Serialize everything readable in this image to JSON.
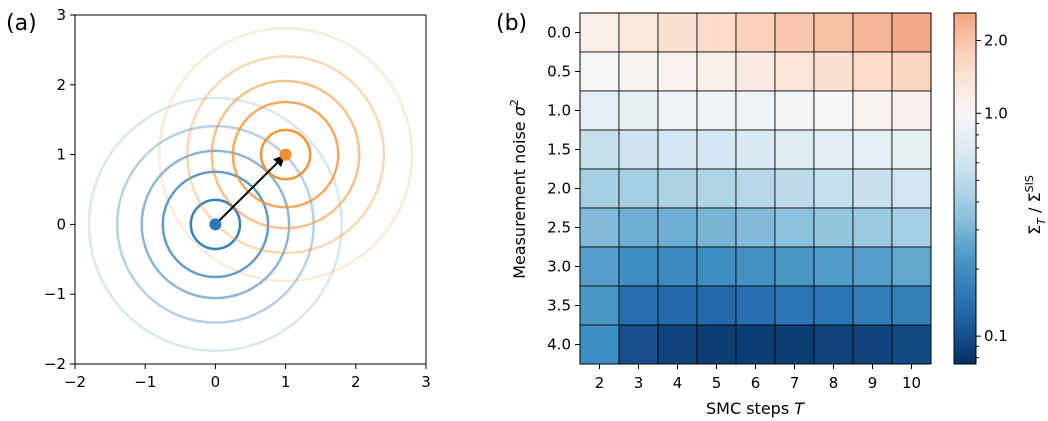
{
  "chart_data": [
    {
      "type": "scatter",
      "panel_label": "(a)",
      "xlim": [
        -2,
        3
      ],
      "ylim": [
        -2,
        3
      ],
      "xticks": [
        "−2",
        "−1",
        "0",
        "1",
        "2",
        "3"
      ],
      "yticks": [
        "−2",
        "−1",
        "0",
        "1",
        "2",
        "3"
      ],
      "xlabel": "",
      "ylabel": "",
      "grid": false,
      "series": [
        {
          "color": "#2c7bb6",
          "center": [
            0,
            0
          ],
          "ring_radii": [
            0.35,
            0.75,
            1.05,
            1.4,
            1.8
          ],
          "ring_opacity": [
            0.95,
            0.75,
            0.55,
            0.35,
            0.18
          ]
        },
        {
          "color": "#f28e2b",
          "center": [
            1,
            1
          ],
          "ring_radii": [
            0.35,
            0.75,
            1.05,
            1.4,
            1.8
          ],
          "ring_opacity": [
            0.95,
            0.75,
            0.55,
            0.35,
            0.18
          ]
        }
      ],
      "arrow": {
        "from": [
          0,
          0
        ],
        "to": [
          1,
          1
        ]
      }
    },
    {
      "type": "heatmap",
      "panel_label": "(b)",
      "xlabel": "SMC steps T",
      "ylabel": "Measurement noise σ²",
      "x": [
        2,
        3,
        4,
        5,
        6,
        7,
        8,
        9,
        10
      ],
      "x_tick_labels": [
        "2",
        "3",
        "4",
        "5",
        "6",
        "7",
        "8",
        "9",
        "10"
      ],
      "y": [
        0.0,
        0.5,
        1.0,
        1.5,
        2.0,
        2.5,
        3.0,
        3.5,
        4.0
      ],
      "y_tick_labels": [
        "0.0",
        "0.5",
        "1.0",
        "1.5",
        "2.0",
        "2.5",
        "3.0",
        "3.5",
        "4.0"
      ],
      "values": [
        [
          1.15,
          1.3,
          1.45,
          1.6,
          1.75,
          1.9,
          2.05,
          2.25,
          2.5
        ],
        [
          0.98,
          1.05,
          1.1,
          1.15,
          1.25,
          1.35,
          1.45,
          1.55,
          1.7
        ],
        [
          0.78,
          0.82,
          0.86,
          0.88,
          0.9,
          0.95,
          1.0,
          1.05,
          1.12
        ],
        [
          0.55,
          0.58,
          0.6,
          0.62,
          0.66,
          0.7,
          0.74,
          0.78,
          0.82
        ],
        [
          0.42,
          0.42,
          0.44,
          0.45,
          0.48,
          0.5,
          0.53,
          0.56,
          0.6
        ],
        [
          0.32,
          0.28,
          0.28,
          0.3,
          0.32,
          0.34,
          0.36,
          0.38,
          0.42
        ],
        [
          0.24,
          0.2,
          0.19,
          0.2,
          0.21,
          0.22,
          0.23,
          0.24,
          0.26
        ],
        [
          0.22,
          0.14,
          0.13,
          0.13,
          0.14,
          0.15,
          0.15,
          0.16,
          0.17
        ],
        [
          0.2,
          0.1,
          0.09,
          0.085,
          0.085,
          0.085,
          0.09,
          0.09,
          0.095
        ]
      ],
      "colorbar": {
        "label": "Σ_T / Σ^SIS",
        "scale": "log",
        "range": [
          0.075,
          2.6
        ],
        "ticks": [
          0.1,
          1.0,
          2.0
        ],
        "tick_labels": [
          "0.1",
          "1.0",
          "2.0"
        ],
        "colors_low_to_high": [
          "#053061",
          "#2166ac",
          "#4393c3",
          "#92c5de",
          "#d1e5f0",
          "#f7f7f7",
          "#fddbc7",
          "#f4a582"
        ]
      }
    }
  ]
}
